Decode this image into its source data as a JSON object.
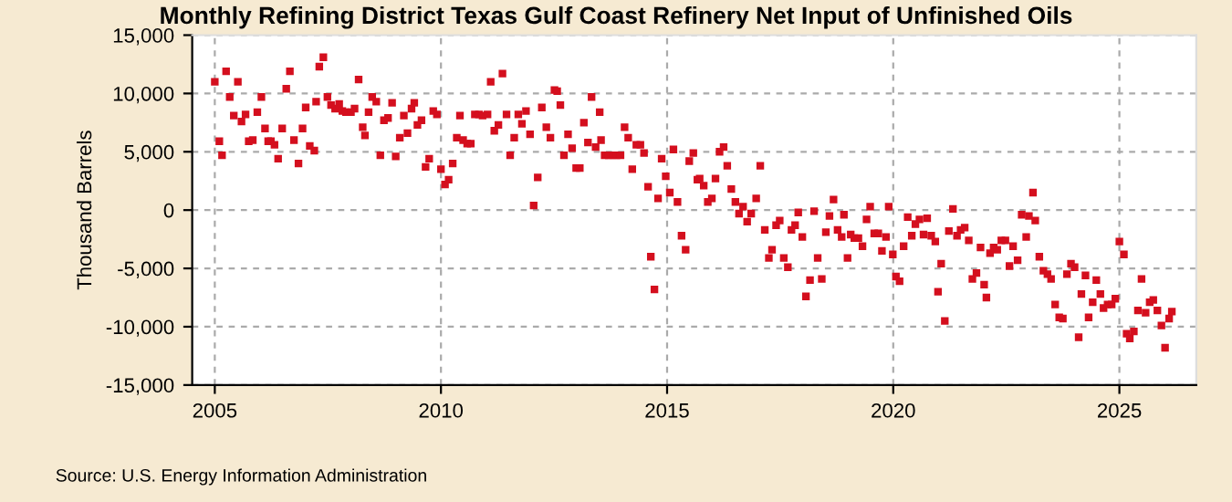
{
  "chart_data": {
    "type": "scatter",
    "title": "Monthly Refining District Texas Gulf Coast Refinery Net Input of Unfinished Oils",
    "ylabel": "Thousand Barrels",
    "annotations": [
      "Source: U.S. Energy Information Administration"
    ],
    "marker": "square",
    "grid": true,
    "legend": false,
    "xlim": [
      2004.5,
      2026.7
    ],
    "xticks": [
      2005,
      2010,
      2015,
      2020,
      2025
    ],
    "ylim": [
      -15000,
      15000
    ],
    "yticks": [
      {
        "value": -15000,
        "label": "-15,000"
      },
      {
        "value": -10000,
        "label": "-10,000"
      },
      {
        "value": -5000,
        "label": "-5,000"
      },
      0,
      {
        "value": 5000,
        "label": "5,000"
      },
      {
        "value": 10000,
        "label": "10,000"
      },
      {
        "value": 15000,
        "label": "15,000"
      }
    ],
    "series": [
      {
        "color": "#d40f1e",
        "x": [
          2005.0,
          2005.1,
          2005.16,
          2005.25,
          2005.33,
          2005.42,
          2005.51,
          2005.59,
          2005.68,
          2005.75,
          2005.84,
          2005.94,
          2006.03,
          2006.11,
          2006.18,
          2006.24,
          2006.32,
          2006.4,
          2006.49,
          2006.58,
          2006.66,
          2006.75,
          2006.85,
          2006.94,
          2007.01,
          2007.1,
          2007.2,
          2007.24,
          2007.31,
          2007.4,
          2007.49,
          2007.57,
          2007.66,
          2007.75,
          2007.82,
          2007.9,
          2008.01,
          2008.09,
          2008.18,
          2008.27,
          2008.32,
          2008.4,
          2008.48,
          2008.57,
          2008.66,
          2008.74,
          2008.83,
          2008.92,
          2009.0,
          2009.09,
          2009.18,
          2009.26,
          2009.35,
          2009.41,
          2009.48,
          2009.57,
          2009.66,
          2009.74,
          2009.83,
          2009.91,
          2010.0,
          2010.09,
          2010.17,
          2010.26,
          2010.35,
          2010.42,
          2010.49,
          2010.58,
          2010.66,
          2010.75,
          2010.84,
          2010.92,
          2011.03,
          2011.1,
          2011.18,
          2011.27,
          2011.36,
          2011.45,
          2011.53,
          2011.62,
          2011.71,
          2011.79,
          2011.88,
          2011.97,
          2012.05,
          2012.14,
          2012.23,
          2012.33,
          2012.42,
          2012.51,
          2012.57,
          2012.64,
          2012.72,
          2012.81,
          2012.9,
          2012.99,
          2013.07,
          2013.16,
          2013.25,
          2013.33,
          2013.42,
          2013.51,
          2013.54,
          2013.62,
          2013.71,
          2013.8,
          2013.88,
          2013.97,
          2014.06,
          2014.14,
          2014.23,
          2014.32,
          2014.41,
          2014.49,
          2014.58,
          2014.64,
          2014.72,
          2014.8,
          2014.88,
          2014.97,
          2015.06,
          2015.14,
          2015.23,
          2015.32,
          2015.41,
          2015.49,
          2015.58,
          2015.67,
          2015.72,
          2015.81,
          2015.9,
          2015.99,
          2016.07,
          2016.16,
          2016.25,
          2016.33,
          2016.42,
          2016.51,
          2016.59,
          2016.68,
          2016.77,
          2016.86,
          2016.97,
          2017.06,
          2017.16,
          2017.25,
          2017.32,
          2017.41,
          2017.49,
          2017.58,
          2017.67,
          2017.75,
          2017.83,
          2017.9,
          2017.99,
          2018.07,
          2018.16,
          2018.25,
          2018.33,
          2018.42,
          2018.51,
          2018.59,
          2018.68,
          2018.77,
          2018.86,
          2018.91,
          2018.99,
          2019.06,
          2019.14,
          2019.23,
          2019.32,
          2019.41,
          2019.49,
          2019.58,
          2019.67,
          2019.75,
          2019.84,
          2019.9,
          2019.99,
          2020.06,
          2020.14,
          2020.23,
          2020.32,
          2020.41,
          2020.49,
          2020.58,
          2020.67,
          2020.75,
          2020.84,
          2020.93,
          2020.99,
          2021.06,
          2021.14,
          2021.23,
          2021.32,
          2021.41,
          2021.49,
          2021.58,
          2021.67,
          2021.75,
          2021.84,
          2021.93,
          2022.01,
          2022.06,
          2022.14,
          2022.22,
          2022.3,
          2022.39,
          2022.48,
          2022.57,
          2022.65,
          2022.75,
          2022.84,
          2022.94,
          2023.0,
          2023.09,
          2023.14,
          2023.23,
          2023.32,
          2023.41,
          2023.49,
          2023.58,
          2023.67,
          2023.75,
          2023.84,
          2023.93,
          2024.01,
          2024.1,
          2024.16,
          2024.25,
          2024.32,
          2024.41,
          2024.49,
          2024.58,
          2024.65,
          2024.74,
          2024.83,
          2024.91,
          2025.0,
          2025.1,
          2025.16,
          2025.23,
          2025.32,
          2025.41,
          2025.49,
          2025.58,
          2025.67,
          2025.75,
          2025.84,
          2025.93,
          2026.01,
          2026.1,
          2026.16
        ],
        "values": [
          11000,
          5900,
          4700,
          11900,
          9700,
          8100,
          11000,
          7600,
          8200,
          5900,
          6000,
          8400,
          9700,
          7000,
          5900,
          5900,
          5600,
          4400,
          7000,
          10400,
          11900,
          6000,
          4000,
          7000,
          8800,
          5500,
          5100,
          9300,
          12300,
          13100,
          9700,
          9000,
          8700,
          9100,
          8500,
          8400,
          8400,
          8700,
          11200,
          7100,
          6400,
          8400,
          9700,
          9300,
          4700,
          7700,
          7900,
          9200,
          4600,
          6200,
          8100,
          6600,
          8700,
          9200,
          7300,
          7700,
          3700,
          4400,
          8500,
          8200,
          3500,
          2200,
          2600,
          4000,
          6200,
          8100,
          6000,
          5700,
          5700,
          8200,
          8200,
          8100,
          8200,
          11000,
          6800,
          7300,
          11700,
          8200,
          4700,
          6200,
          8200,
          7400,
          8500,
          6500,
          400,
          2800,
          8800,
          7100,
          6200,
          10300,
          10200,
          9000,
          4700,
          6500,
          5300,
          3600,
          3600,
          7500,
          5800,
          9700,
          5400,
          8400,
          6000,
          4700,
          4700,
          4700,
          4700,
          4700,
          7100,
          6200,
          3500,
          5600,
          5600,
          4900,
          2000,
          -4000,
          -6800,
          1000,
          4400,
          2900,
          1500,
          5200,
          700,
          -2200,
          -3400,
          4200,
          4900,
          2600,
          2700,
          2100,
          700,
          1000,
          2700,
          5000,
          5400,
          3800,
          1800,
          700,
          -300,
          300,
          -1000,
          -300,
          1000,
          3800,
          -1700,
          -4100,
          -3400,
          -1300,
          -900,
          -4100,
          -4900,
          -1700,
          -1300,
          -200,
          -2300,
          -7400,
          -6000,
          -100,
          -4100,
          -5900,
          -1900,
          -500,
          900,
          -1700,
          -2300,
          -400,
          -4100,
          -2100,
          -2400,
          -2400,
          -3100,
          -800,
          300,
          -2000,
          -2000,
          -3500,
          -2300,
          300,
          -3800,
          -5700,
          -6100,
          -3100,
          -600,
          -2200,
          -1200,
          -800,
          -2100,
          -700,
          -2200,
          -2700,
          -7000,
          -4600,
          -9500,
          -1800,
          100,
          -2200,
          -1700,
          -1500,
          -2600,
          -5900,
          -5400,
          -3200,
          -6400,
          -7500,
          -3700,
          -3200,
          -3400,
          -2600,
          -2600,
          -4800,
          -3100,
          -4300,
          -400,
          -2300,
          -500,
          1500,
          -900,
          -4000,
          -5200,
          -5500,
          -5900,
          -8100,
          -9200,
          -9300,
          -5500,
          -4600,
          -4900,
          -10900,
          -7200,
          -5600,
          -9200,
          -7900,
          -6000,
          -7200,
          -8400,
          -8100,
          -8100,
          -7600,
          -2700,
          -3800,
          -10600,
          -11000,
          -10400,
          -8600,
          -5900,
          -8800,
          -7900,
          -7700,
          -8600,
          -9900,
          -11800,
          -9300,
          -8700
        ]
      }
    ]
  }
}
